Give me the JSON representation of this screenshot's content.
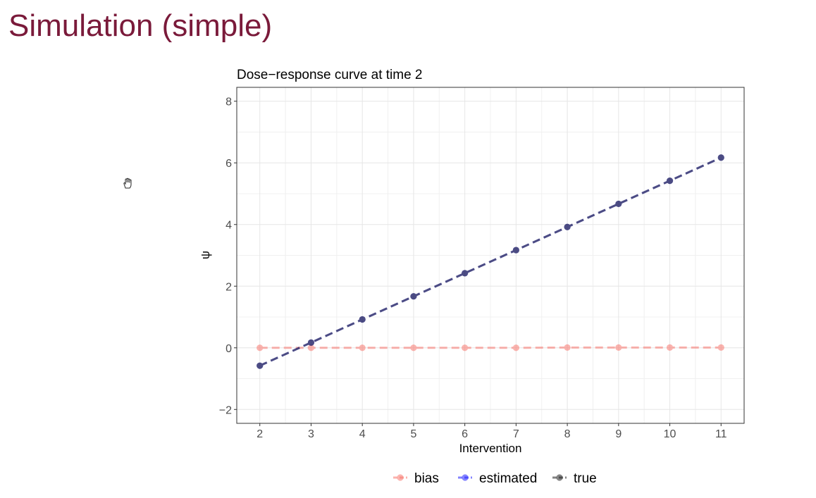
{
  "slide": {
    "title": "Simulation (simple)"
  },
  "icons": {
    "cursor": "hand-cursor-icon"
  },
  "chart_data": {
    "type": "line",
    "title": "Dose−response curve at time 2",
    "xlabel": "Intervention",
    "ylabel": "ψ",
    "xlim": [
      1.55,
      11.45
    ],
    "ylim": [
      -2.45,
      8.45
    ],
    "x_ticks": [
      2,
      3,
      4,
      5,
      6,
      7,
      8,
      9,
      10,
      11
    ],
    "y_ticks": [
      -2,
      0,
      2,
      4,
      6,
      8
    ],
    "y_tick_labels": [
      "−2",
      "0",
      "2",
      "4",
      "6",
      "8"
    ],
    "grid": true,
    "legend_position": "bottom",
    "x": [
      2,
      3,
      4,
      5,
      6,
      7,
      8,
      9,
      10,
      11
    ],
    "series": [
      {
        "name": "bias",
        "color": "#f8766d",
        "line_style": "dashed",
        "values": [
          0.0,
          0.0,
          0.0,
          0.0,
          0.0,
          0.0,
          0.01,
          0.01,
          0.01,
          0.01
        ]
      },
      {
        "name": "estimated",
        "color": "#1f1fff",
        "line_style": "dashed",
        "values": [
          -0.58,
          0.17,
          0.92,
          1.67,
          2.42,
          3.17,
          3.92,
          4.67,
          5.42,
          6.17
        ]
      },
      {
        "name": "true",
        "color": "#202020",
        "line_style": "dashed",
        "values": [
          -0.58,
          0.17,
          0.92,
          1.67,
          2.42,
          3.17,
          3.92,
          4.67,
          5.42,
          6.17
        ]
      }
    ]
  }
}
